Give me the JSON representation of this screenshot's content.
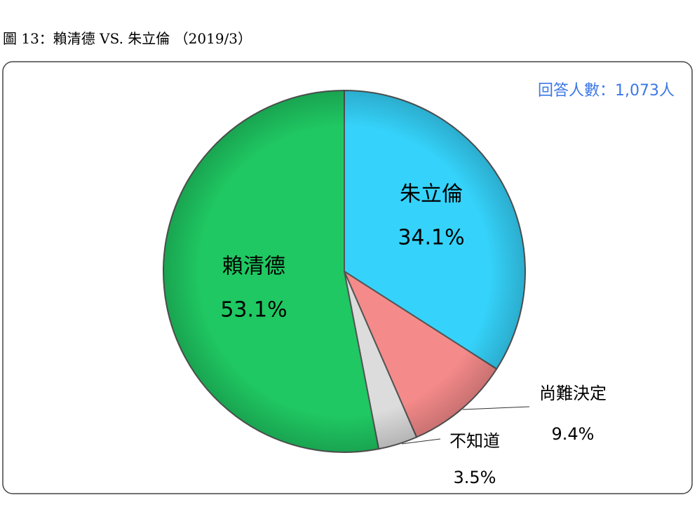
{
  "chart_data": {
    "type": "pie",
    "title": "圖 13：賴清德 VS. 朱立倫 （2019/3）",
    "annotation": "回答人數：1,073人",
    "categories": [
      "朱立倫",
      "尚難決定",
      "不知道",
      "賴清德"
    ],
    "values": [
      34.1,
      9.4,
      3.5,
      53.1
    ],
    "value_labels": [
      "34.1%",
      "9.4%",
      "3.5%",
      "53.1%"
    ],
    "colors": [
      "#35d3fb",
      "#f58a8a",
      "#dcdcdc",
      "#1fc862"
    ]
  }
}
